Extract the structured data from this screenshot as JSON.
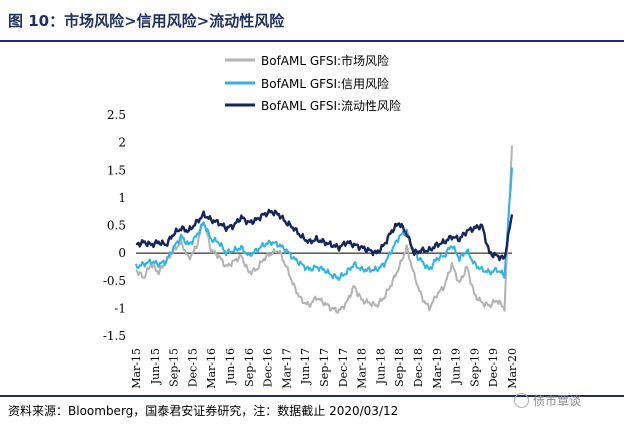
{
  "header": {
    "title": "图 10：市场风险>信用风险>流动性风险"
  },
  "footer": {
    "source": "资料来源：Bloomberg，国泰君安证券研究，注：数据截止 2020/03/12",
    "watermark": "债市覃谈"
  },
  "chart_data": {
    "type": "line",
    "ylim": [
      -1.5,
      2.5
    ],
    "yticks": [
      -1.5,
      -1,
      -0.5,
      0,
      0.5,
      1,
      1.5,
      2,
      2.5
    ],
    "ytick_labels": [
      "-1.5",
      "-1",
      "-0.5",
      "0",
      "0.5",
      "1",
      "1.5",
      "2",
      "2.5"
    ],
    "xticks": [
      "Mar-15",
      "Jun-15",
      "Sep-15",
      "Dec-15",
      "Mar-16",
      "Jun-16",
      "Sep-16",
      "Dec-16",
      "Mar-17",
      "Jun-17",
      "Sep-17",
      "Dec-17",
      "Mar-18",
      "Jun-18",
      "Sep-18",
      "Dec-18",
      "Mar-19",
      "Jun-19",
      "Sep-19",
      "Dec-19",
      "Mar-20"
    ],
    "legend_position": "top-center",
    "series": [
      {
        "name": "BofAML GFSI:市场风险",
        "color": "#b3b3b3",
        "values": [
          -0.3,
          -0.45,
          -0.2,
          -0.35,
          -0.15,
          0.05,
          0.2,
          -0.1,
          0.1,
          0.6,
          0.05,
          -0.05,
          -0.25,
          -0.15,
          -0.05,
          -0.35,
          -0.3,
          -0.1,
          0.0,
          0.05,
          -0.25,
          -0.6,
          -0.85,
          -0.95,
          -0.8,
          -0.9,
          -1.0,
          -1.05,
          -0.9,
          -0.6,
          -0.85,
          -0.9,
          -0.95,
          -0.8,
          -0.55,
          -0.25,
          0.1,
          -0.4,
          -0.8,
          -1.0,
          -0.75,
          -0.6,
          -0.2,
          -0.55,
          -0.25,
          -0.75,
          -0.9,
          -0.95,
          -0.85,
          -1.0,
          1.95
        ]
      },
      {
        "name": "BofAML GFSI:信用风险",
        "color": "#2eb4e6",
        "values": [
          -0.25,
          -0.2,
          -0.15,
          -0.2,
          -0.15,
          0.1,
          0.3,
          0.15,
          0.3,
          0.55,
          0.25,
          0.2,
          0.0,
          0.05,
          0.1,
          -0.05,
          0.05,
          0.15,
          0.2,
          0.15,
          0.05,
          -0.1,
          -0.2,
          -0.3,
          -0.25,
          -0.3,
          -0.4,
          -0.45,
          -0.35,
          -0.2,
          -0.3,
          -0.3,
          -0.3,
          -0.2,
          0.05,
          0.3,
          0.4,
          0.0,
          -0.15,
          -0.3,
          -0.1,
          -0.05,
          0.15,
          -0.1,
          0.05,
          -0.2,
          -0.3,
          -0.35,
          -0.3,
          -0.4,
          1.55
        ]
      },
      {
        "name": "BofAML GFSI:流动性风险",
        "color": "#14265c",
        "values": [
          0.15,
          0.2,
          0.15,
          0.2,
          0.15,
          0.35,
          0.45,
          0.4,
          0.55,
          0.7,
          0.6,
          0.55,
          0.45,
          0.5,
          0.65,
          0.55,
          0.6,
          0.7,
          0.75,
          0.7,
          0.55,
          0.45,
          0.3,
          0.2,
          0.25,
          0.2,
          0.15,
          0.1,
          0.2,
          0.15,
          0.1,
          0.05,
          0.0,
          0.15,
          0.4,
          0.55,
          0.35,
          0.0,
          0.05,
          0.05,
          0.15,
          0.2,
          0.3,
          0.25,
          0.4,
          0.45,
          0.5,
          0.0,
          -0.05,
          -0.1,
          0.7
        ]
      }
    ]
  }
}
